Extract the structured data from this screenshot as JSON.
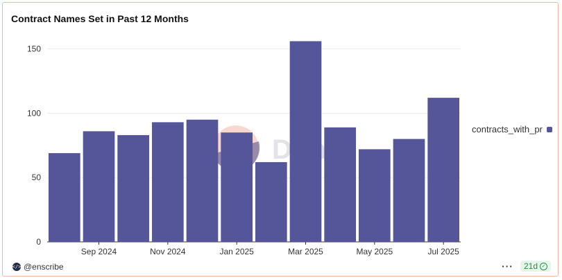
{
  "card": {
    "title": "Contract Names Set in Past 12 Months",
    "watermark": "Dune",
    "author": "@enscribe",
    "author_icon": "code-brackets-icon",
    "badge_text": "21d",
    "badge_icon": "check-circle-icon",
    "more_icon": "more-dots-icon"
  },
  "chart_data": {
    "type": "bar",
    "title": "Contract Names Set in Past 12 Months",
    "categories": [
      "Aug 2024",
      "Sep 2024",
      "Oct 2024",
      "Nov 2024",
      "Dec 2024",
      "Jan 2025",
      "Feb 2025",
      "Mar 2025",
      "Apr 2025",
      "May 2025",
      "Jun 2025",
      "Jul 2025"
    ],
    "x_tick_labels": [
      "Sep 2024",
      "Nov 2024",
      "Jan 2025",
      "Mar 2025",
      "May 2025",
      "Jul 2025"
    ],
    "series": [
      {
        "name": "contracts_with_pr",
        "values": [
          69,
          86,
          83,
          93,
          95,
          85,
          62,
          156,
          89,
          72,
          80,
          112
        ],
        "color": "#55569a"
      }
    ],
    "y_ticks": [
      0,
      50,
      100,
      150
    ],
    "ylim": [
      0,
      160
    ],
    "grid": true,
    "legend_position": "right"
  }
}
